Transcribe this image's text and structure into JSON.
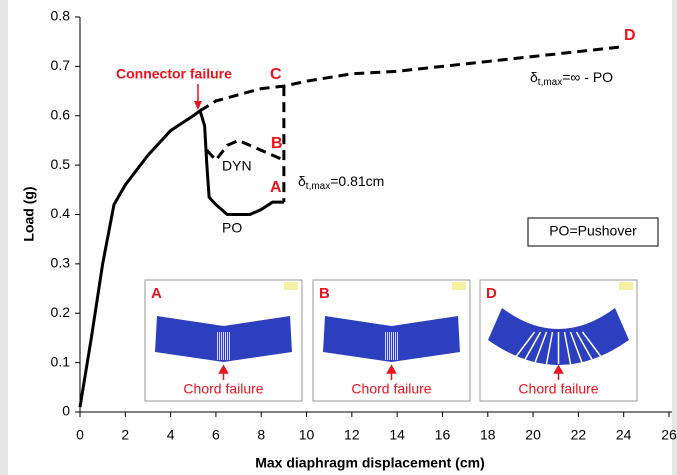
{
  "chart_data": {
    "type": "line",
    "x_label": "Max diaphragm displacement (cm)",
    "y_label": "Load (g)",
    "xlim": [
      0,
      26
    ],
    "ylim": [
      0,
      0.8
    ],
    "xticks": [
      0,
      2,
      4,
      6,
      8,
      10,
      12,
      14,
      16,
      18,
      20,
      22,
      24,
      26
    ],
    "yticks": [
      0,
      0.1,
      0.2,
      0.3,
      0.4,
      0.5,
      0.6,
      0.7,
      0.8
    ],
    "series": [
      {
        "name": "PO",
        "color": "#000000",
        "dash": false,
        "x": [
          0,
          0.5,
          1,
          1.5,
          2,
          3,
          4,
          5,
          5.3,
          5.5,
          5.6,
          5.7,
          6,
          6.5,
          7,
          7.5,
          8,
          8.5,
          9
        ],
        "values": [
          0.01,
          0.15,
          0.3,
          0.42,
          0.46,
          0.52,
          0.57,
          0.6,
          0.61,
          0.58,
          0.5,
          0.435,
          0.42,
          0.4,
          0.4,
          0.4,
          0.41,
          0.425,
          0.425
        ]
      },
      {
        "name": "DYN",
        "color": "#000000",
        "dash": true,
        "x": [
          5.6,
          6,
          6.5,
          7,
          7.5,
          8,
          9
        ],
        "values": [
          0.53,
          0.51,
          0.54,
          0.55,
          0.54,
          0.53,
          0.51
        ]
      },
      {
        "color": "#000000",
        "dash": true,
        "x": [
          5.3,
          6,
          8,
          9,
          10,
          12,
          14,
          16,
          18,
          20,
          22,
          24
        ],
        "values": [
          0.61,
          0.63,
          0.655,
          0.66,
          0.67,
          0.685,
          0.69,
          0.7,
          0.71,
          0.72,
          0.73,
          0.74
        ]
      },
      {
        "color": "#000000",
        "dash": true,
        "x": [
          9,
          9
        ],
        "values": [
          0.66,
          0.425
        ]
      }
    ],
    "annotations": {
      "connector": "Connector failure",
      "points": [
        "C",
        "D",
        "B",
        "A"
      ],
      "delta1": {
        "symbol": "δ",
        "subscript": "t,max",
        "text": "=0.81cm"
      },
      "delta2": {
        "symbol": "δ",
        "subscript": "t,max",
        "text": "=∞ - PO"
      },
      "legend_box": "PO=Pushover"
    },
    "insets": [
      {
        "label": "A",
        "caption": "Chord failure"
      },
      {
        "label": "B",
        "caption": "Chord failure"
      },
      {
        "label": "D",
        "caption": "Chord failure"
      }
    ]
  }
}
